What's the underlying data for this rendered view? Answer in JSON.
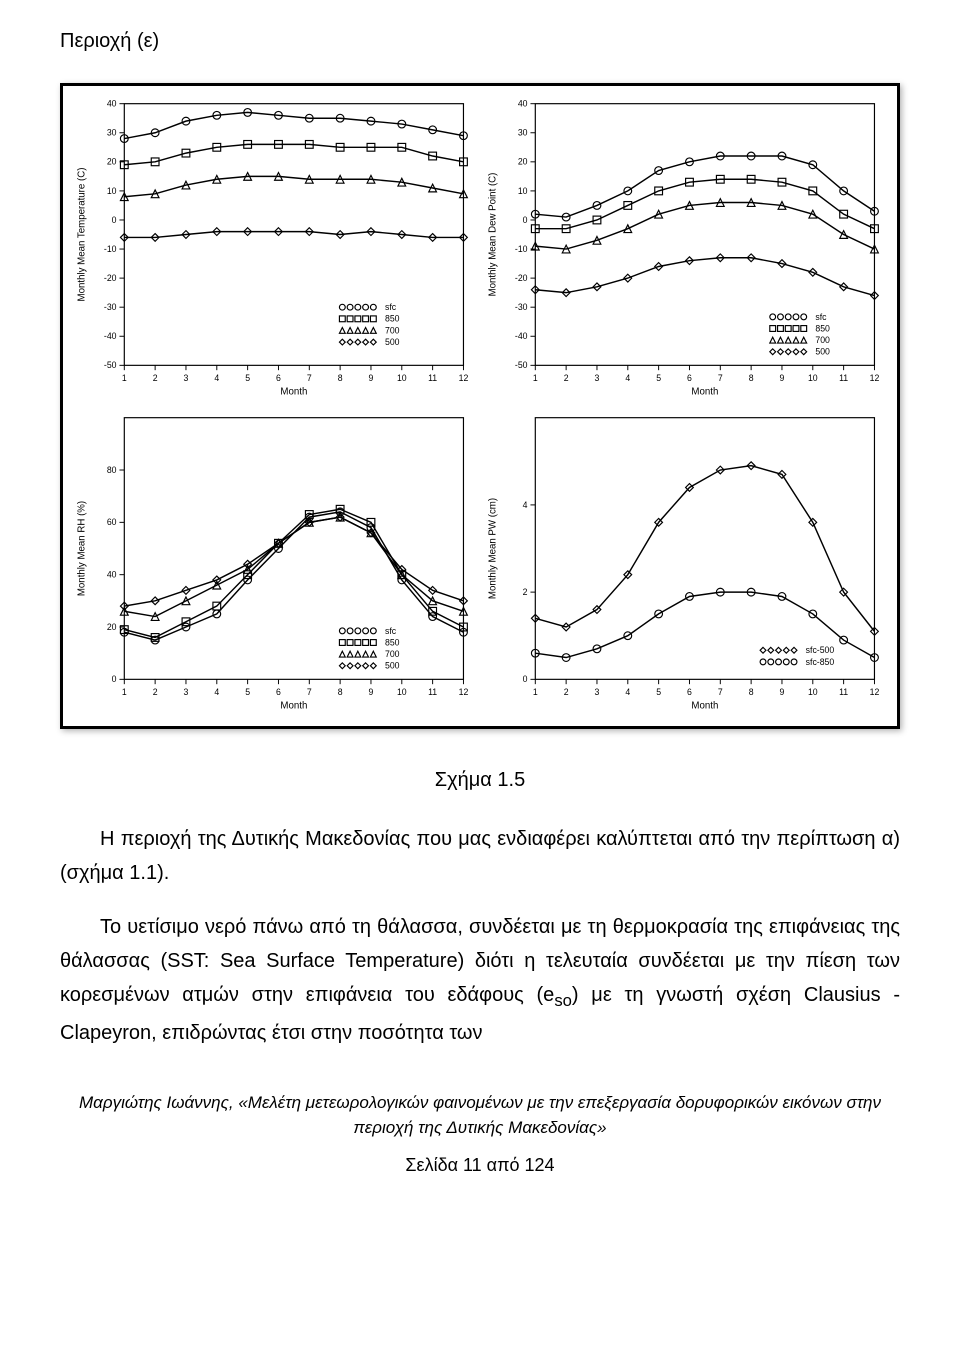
{
  "region_label": "Περιοχή (ε)",
  "caption": "Σχήμα 1.5",
  "body_para1_html": "Η περιοχή της Δυτικής Μακεδονίας που μας ενδιαφέρει καλύπτεται από την περίπτωση α) (σχήμα 1.1).",
  "body_para2_html": "Το υετίσιμο νερό πάνω από τη θάλασσα, συνδέεται με τη θερμοκρασία της επιφάνειας της θάλασσας (SST: Sea Surface Temperature) διότι η τελευταία συνδέεται με την πίεση των κορεσμένων ατμών στην επιφάνεια του εδάφους (e<sub>so</sub>) με τη γνωστή σχέση Clausius - Clapeyron, επιδρώντας έτσι στην ποσότητα των",
  "footer_credit": "Μαργιώτης Ιωάννης, «Μελέτη μετεωρολογικών φαινομένων με την επεξεργασία δορυφορικών εικόνων στην περιοχή της Δυτικής Μακεδονίας»",
  "page_num": "Σελίδα 11 από 124",
  "legend": {
    "items": [
      "sfc",
      "850",
      "700",
      "500"
    ],
    "markers": [
      "circle",
      "square",
      "triangle",
      "diamond"
    ]
  },
  "legend_pw": {
    "items": [
      "sfc-500",
      "sfc-850"
    ],
    "markers": [
      "diamond",
      "circle"
    ]
  },
  "axis": {
    "xlabel": "Month",
    "xticks": [
      1,
      2,
      3,
      4,
      5,
      6,
      7,
      8,
      9,
      10,
      11,
      12
    ],
    "font_size": 9,
    "font_family": "sans-serif",
    "tick_len": 4
  },
  "panel_temp": {
    "ylabel": "Monthly Mean Temperature (C)",
    "ylim": [
      -50,
      40
    ],
    "yticks": [
      -50,
      -40,
      -30,
      -20,
      -10,
      0,
      10,
      20,
      30,
      40
    ],
    "series": {
      "sfc": [
        28,
        30,
        34,
        36,
        37,
        36,
        35,
        35,
        34,
        33,
        31,
        29
      ],
      "850": [
        19,
        20,
        23,
        25,
        26,
        26,
        26,
        25,
        25,
        25,
        22,
        20
      ],
      "700": [
        8,
        9,
        12,
        14,
        15,
        15,
        14,
        14,
        14,
        13,
        11,
        9
      ],
      "500": [
        -6,
        -6,
        -5,
        -4,
        -4,
        -4,
        -4,
        -5,
        -4,
        -5,
        -6,
        -6
      ]
    }
  },
  "panel_dew": {
    "ylabel": "Monthly Mean Dew Point (C)",
    "ylim": [
      -50,
      40
    ],
    "yticks": [
      -50,
      -40,
      -30,
      -20,
      -10,
      0,
      10,
      20,
      30,
      40
    ],
    "series": {
      "sfc": [
        2,
        1,
        5,
        10,
        17,
        20,
        22,
        22,
        22,
        19,
        10,
        3
      ],
      "850": [
        -3,
        -3,
        0,
        5,
        10,
        13,
        14,
        14,
        13,
        10,
        2,
        -3
      ],
      "700": [
        -9,
        -10,
        -7,
        -3,
        2,
        5,
        6,
        6,
        5,
        2,
        -5,
        -10
      ],
      "500": [
        -24,
        -25,
        -23,
        -20,
        -16,
        -14,
        -13,
        -13,
        -15,
        -18,
        -23,
        -26
      ]
    }
  },
  "panel_rh": {
    "ylabel": "Monthly Mean RH (%)",
    "ylim": [
      0,
      100
    ],
    "yticks": [
      0,
      20,
      40,
      60,
      80
    ],
    "series": {
      "sfc": [
        18,
        15,
        20,
        25,
        38,
        50,
        62,
        64,
        58,
        38,
        24,
        18
      ],
      "850": [
        19,
        16,
        22,
        28,
        40,
        52,
        63,
        65,
        60,
        40,
        26,
        20
      ],
      "700": [
        26,
        24,
        30,
        36,
        42,
        52,
        60,
        62,
        56,
        40,
        30,
        26
      ],
      "500": [
        28,
        30,
        34,
        38,
        44,
        52,
        60,
        62,
        56,
        42,
        34,
        30
      ]
    }
  },
  "panel_pw": {
    "ylabel": "Monthly Mean PW (cm)",
    "ylim": [
      0,
      6
    ],
    "yticks": [
      0,
      2,
      4
    ],
    "series": {
      "sfc-500": [
        1.4,
        1.2,
        1.6,
        2.4,
        3.6,
        4.4,
        4.8,
        4.9,
        4.7,
        3.6,
        2.0,
        1.1
      ],
      "sfc-850": [
        0.6,
        0.5,
        0.7,
        1.0,
        1.5,
        1.9,
        2.0,
        2.0,
        1.9,
        1.5,
        0.9,
        0.5
      ]
    }
  },
  "style": {
    "axis_color": "#000000",
    "line_color": "#000000",
    "background": "#ffffff",
    "line_width": 1.5,
    "marker_size": 4
  }
}
